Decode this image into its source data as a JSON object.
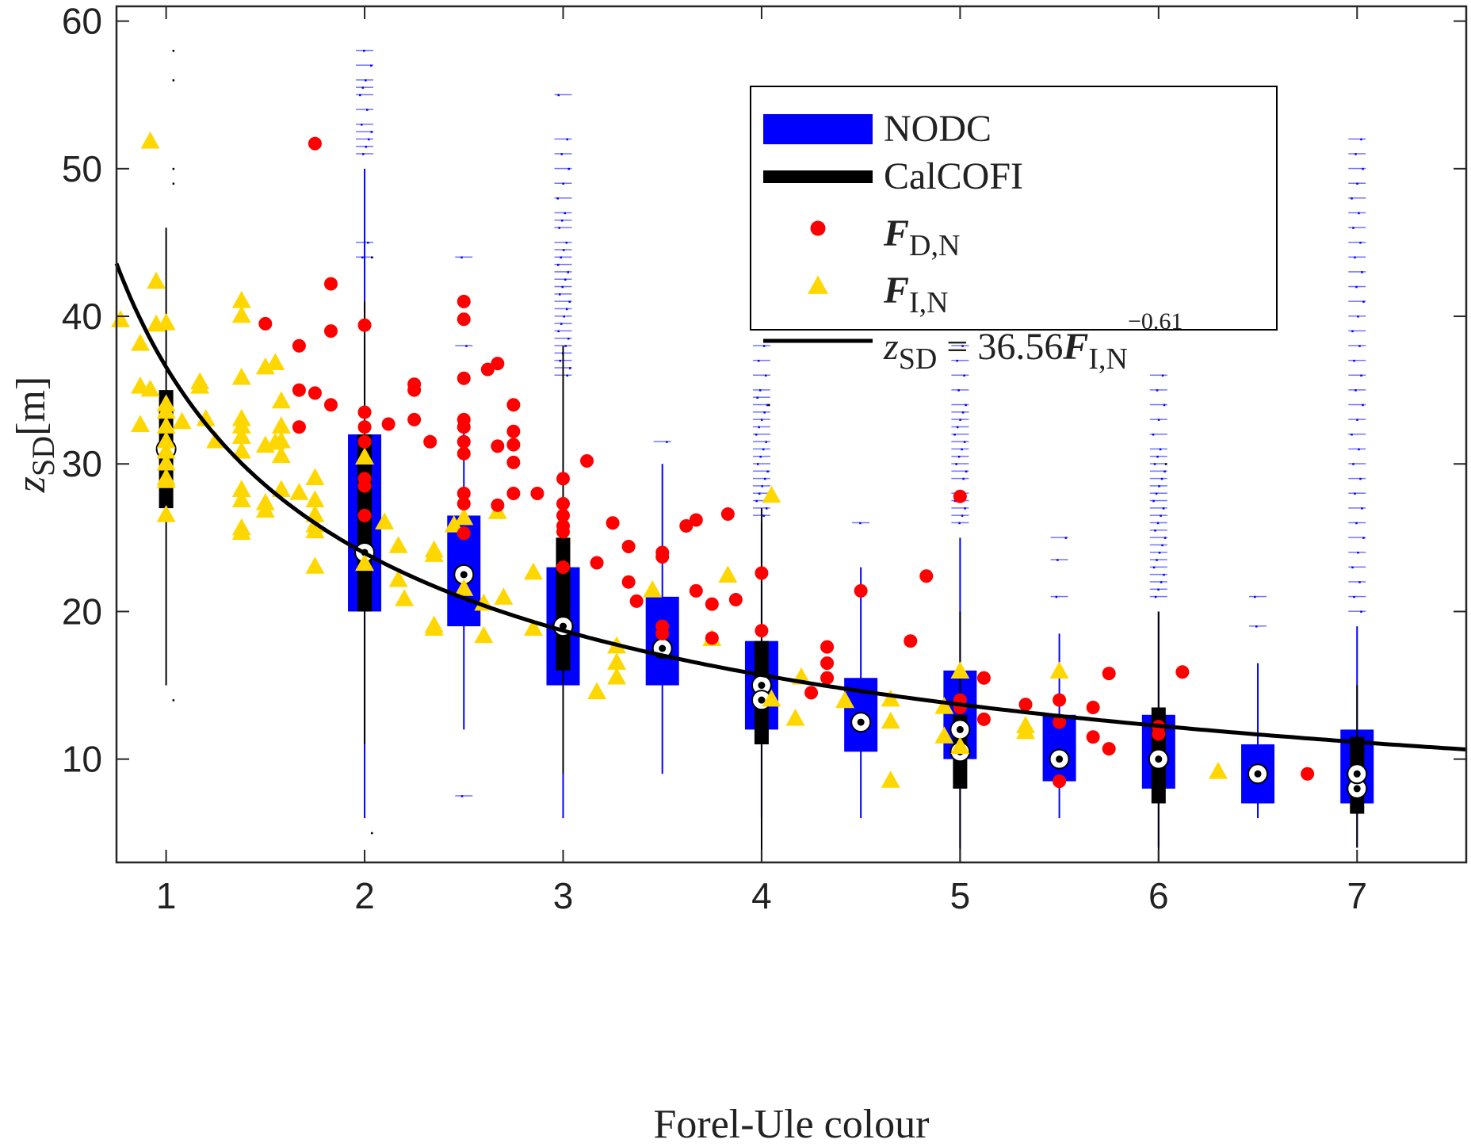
{
  "chart_data": {
    "type": "box",
    "title": "",
    "xlabel": "Forel-Ule colour",
    "ylabel": {
      "var": "z",
      "sub": "SD",
      "unit": "[m]"
    },
    "xlim": [
      0.75,
      7.55
    ],
    "ylim": [
      3,
      61
    ],
    "xticks": [
      1,
      2,
      3,
      4,
      5,
      6,
      7
    ],
    "yticks": [
      10,
      20,
      30,
      40,
      50,
      60
    ],
    "grid": false,
    "legend_position": "top-right",
    "colors": {
      "nodc": "#0000ff",
      "calcofi": "#000000",
      "fdn": "#ff0000",
      "fin": "#ffd700",
      "fit": "#000000"
    },
    "legend": [
      {
        "key": "nodc",
        "text": "NODC"
      },
      {
        "key": "calcofi",
        "text": "CalCOFI"
      },
      {
        "key": "fdn",
        "bold": "F",
        "sub": "D,N"
      },
      {
        "key": "fin",
        "bold": "F",
        "sub": "I,N"
      },
      {
        "key": "fit",
        "pre": "z",
        "presub": "SD",
        "eq": " = 36.56",
        "bold": "F",
        "sub": "I,N",
        "sup": "−0.61"
      }
    ],
    "fit": {
      "a": 36.56,
      "b": -0.61
    },
    "nodc_boxes": [
      {
        "x": 2,
        "q1": 20,
        "q3": 32,
        "median": 24,
        "wlow": 6,
        "whigh": 50,
        "outliers": [
          51,
          51.5,
          52,
          52.5,
          53,
          54,
          55,
          55.5,
          56,
          57,
          58,
          44,
          45
        ]
      },
      {
        "x": 2.5,
        "q1": 19,
        "q3": 26.5,
        "median": 22.5,
        "wlow": 12,
        "whigh": 33,
        "outliers": [
          7.5,
          38,
          44
        ]
      },
      {
        "x": 3,
        "q1": 15,
        "q3": 23,
        "median": 19,
        "wlow": 6,
        "whigh": 35,
        "outliers": [
          36,
          36.5,
          37,
          37.5,
          38,
          38.5,
          39,
          39.5,
          40,
          40.5,
          41,
          41.5,
          42,
          42.5,
          43,
          43.5,
          44,
          44.5,
          45,
          46,
          46.5,
          47,
          48,
          49,
          50,
          51,
          52,
          55
        ]
      },
      {
        "x": 3.5,
        "q1": 15,
        "q3": 21,
        "median": 17.5,
        "wlow": 9,
        "whigh": 30,
        "outliers": [
          31.5
        ]
      },
      {
        "x": 4,
        "q1": 12,
        "q3": 18,
        "median": 15,
        "wlow": 6,
        "whigh": 26,
        "outliers": [
          26.5,
          27,
          27.5,
          28,
          28.5,
          29,
          29.5,
          30,
          30.5,
          31,
          31.5,
          32,
          32.5,
          33,
          33.5,
          34,
          34.5,
          35,
          36,
          37,
          38
        ]
      },
      {
        "x": 4.5,
        "q1": 10.5,
        "q3": 15.5,
        "median": 12.5,
        "wlow": 6,
        "whigh": 23,
        "outliers": [
          26
        ]
      },
      {
        "x": 5,
        "q1": 10,
        "q3": 16,
        "median": 12,
        "wlow": 4,
        "whigh": 25,
        "outliers": [
          26,
          26.5,
          27,
          27.5,
          28,
          29,
          29.5,
          30,
          30.5,
          31,
          31.5,
          32,
          32.5,
          33,
          33.5,
          34,
          35,
          36,
          37,
          38
        ]
      },
      {
        "x": 5.5,
        "q1": 8.5,
        "q3": 13,
        "median": 10,
        "wlow": 6,
        "whigh": 18.5,
        "outliers": [
          21,
          23.5,
          25
        ]
      },
      {
        "x": 6,
        "q1": 8,
        "q3": 13,
        "median": 10,
        "wlow": 4,
        "whigh": 20,
        "outliers": [
          21,
          21.5,
          22,
          22.5,
          23,
          23.5,
          24,
          24.5,
          25,
          25.5,
          26,
          26.5,
          27,
          27.5,
          28,
          28.5,
          29,
          29.5,
          30,
          30.5,
          31,
          32,
          33,
          34,
          35,
          36
        ]
      },
      {
        "x": 6.5,
        "q1": 7,
        "q3": 11,
        "median": 9,
        "wlow": 6,
        "whigh": 16.5,
        "outliers": [
          19,
          21
        ]
      },
      {
        "x": 7,
        "q1": 7,
        "q3": 12,
        "median": 8,
        "wlow": 4,
        "whigh": 19,
        "outliers": [
          20,
          21,
          22,
          23,
          24,
          25,
          26,
          27,
          28,
          29,
          30,
          31,
          32,
          33,
          34,
          35,
          36,
          37,
          38,
          39,
          40,
          41,
          42,
          43,
          44,
          45,
          46,
          47,
          48,
          49,
          50,
          51,
          52
        ]
      }
    ],
    "calcofi_boxes": [
      {
        "x": 1,
        "q1": 27,
        "q3": 35,
        "median": 31,
        "wlow": 15,
        "whigh": 46,
        "outliers": [
          14,
          49,
          50,
          56,
          58
        ]
      },
      {
        "x": 2,
        "q1": 20,
        "q3": 32,
        "median": 24,
        "wlow": 11,
        "whigh": 41,
        "outliers": [
          5,
          44
        ]
      },
      {
        "x": 3,
        "q1": 16,
        "q3": 25,
        "median": 19,
        "wlow": 9,
        "whigh": 38,
        "outliers": []
      },
      {
        "x": 4,
        "q1": 11,
        "q3": 18,
        "median": 14,
        "wlow": 3,
        "whigh": 27,
        "outliers": [
          34
        ]
      },
      {
        "x": 5,
        "q1": 8,
        "q3": 13,
        "median": 10.5,
        "wlow": 3,
        "whigh": 20,
        "outliers": []
      },
      {
        "x": 6,
        "q1": 7,
        "q3": 13.5,
        "median": 10,
        "wlow": 3,
        "whigh": 20,
        "outliers": [
          30
        ]
      },
      {
        "x": 7,
        "q1": 6.3,
        "q3": 11.5,
        "median": 9,
        "wlow": 4,
        "whigh": 15,
        "outliers": []
      }
    ],
    "fdn_points": [
      [
        1.5,
        39.5
      ],
      [
        1.67,
        38
      ],
      [
        1.67,
        35
      ],
      [
        1.67,
        32.5
      ],
      [
        1.75,
        51.7
      ],
      [
        1.75,
        34.8
      ],
      [
        1.83,
        42.2
      ],
      [
        1.83,
        39
      ],
      [
        1.83,
        34
      ],
      [
        2,
        39.4
      ],
      [
        2,
        33.5
      ],
      [
        2,
        32.5
      ],
      [
        2,
        31.5
      ],
      [
        2,
        29
      ],
      [
        2,
        28.5
      ],
      [
        2,
        26.5
      ],
      [
        2.12,
        32.7
      ],
      [
        2.25,
        35.4
      ],
      [
        2.25,
        35
      ],
      [
        2.25,
        33
      ],
      [
        2.33,
        31.5
      ],
      [
        2.5,
        41
      ],
      [
        2.5,
        39.8
      ],
      [
        2.5,
        35.8
      ],
      [
        2.5,
        33
      ],
      [
        2.5,
        32.5
      ],
      [
        2.5,
        31.5
      ],
      [
        2.5,
        30.7
      ],
      [
        2.5,
        28
      ],
      [
        2.5,
        27.3
      ],
      [
        2.5,
        25.3
      ],
      [
        2.62,
        36.4
      ],
      [
        2.67,
        36.8
      ],
      [
        2.67,
        31.2
      ],
      [
        2.67,
        27.2
      ],
      [
        2.75,
        34
      ],
      [
        2.75,
        32.2
      ],
      [
        2.75,
        31.3
      ],
      [
        2.75,
        30.1
      ],
      [
        2.75,
        28
      ],
      [
        2.87,
        28
      ],
      [
        3,
        29
      ],
      [
        3,
        27.3
      ],
      [
        3,
        26.5
      ],
      [
        3,
        25.8
      ],
      [
        3,
        25.4
      ],
      [
        3,
        23
      ],
      [
        3.12,
        30.2
      ],
      [
        3.17,
        23.3
      ],
      [
        3.25,
        26
      ],
      [
        3.33,
        24.4
      ],
      [
        3.33,
        22
      ],
      [
        3.37,
        20.7
      ],
      [
        3.5,
        24
      ],
      [
        3.5,
        23.7
      ],
      [
        3.5,
        19
      ],
      [
        3.5,
        18.5
      ],
      [
        3.62,
        25.8
      ],
      [
        3.67,
        26.2
      ],
      [
        3.67,
        21.4
      ],
      [
        3.75,
        20.5
      ],
      [
        3.75,
        18.2
      ],
      [
        3.83,
        26.6
      ],
      [
        3.87,
        20.8
      ],
      [
        4,
        22.6
      ],
      [
        4,
        18.7
      ],
      [
        4.25,
        14.5
      ],
      [
        4.33,
        17.6
      ],
      [
        4.33,
        16.5
      ],
      [
        4.33,
        15.5
      ],
      [
        4.5,
        21.4
      ],
      [
        4.75,
        18
      ],
      [
        4.83,
        22.4
      ],
      [
        5,
        27.8
      ],
      [
        5,
        14
      ],
      [
        5,
        13.5
      ],
      [
        5.12,
        15.5
      ],
      [
        5.12,
        12.7
      ],
      [
        5.33,
        13.7
      ],
      [
        5.5,
        14
      ],
      [
        5.5,
        12.5
      ],
      [
        5.5,
        8.5
      ],
      [
        5.67,
        13.5
      ],
      [
        5.67,
        11.5
      ],
      [
        5.75,
        15.8
      ],
      [
        5.75,
        10.7
      ],
      [
        6,
        12.2
      ],
      [
        6,
        11.7
      ],
      [
        6.12,
        15.9
      ],
      [
        6.75,
        9
      ]
    ],
    "fin_points": [
      [
        0.77,
        39.7
      ],
      [
        0.87,
        38.1
      ],
      [
        0.87,
        35.2
      ],
      [
        0.87,
        32.6
      ],
      [
        0.92,
        51.8
      ],
      [
        0.92,
        35
      ],
      [
        0.95,
        42.3
      ],
      [
        0.95,
        39.4
      ],
      [
        1,
        39.5
      ],
      [
        1,
        34
      ],
      [
        1,
        33.5
      ],
      [
        1,
        32.5
      ],
      [
        1,
        31.5
      ],
      [
        1,
        30.8
      ],
      [
        1,
        30
      ],
      [
        1,
        29
      ],
      [
        1,
        28.8
      ],
      [
        1,
        26.5
      ],
      [
        1.08,
        32.8
      ],
      [
        1.17,
        35.5
      ],
      [
        1.17,
        35.2
      ],
      [
        1.2,
        33
      ],
      [
        1.25,
        31.5
      ],
      [
        1.38,
        41
      ],
      [
        1.38,
        40
      ],
      [
        1.38,
        35.8
      ],
      [
        1.38,
        33
      ],
      [
        1.38,
        32.5
      ],
      [
        1.38,
        31.8
      ],
      [
        1.38,
        30.8
      ],
      [
        1.38,
        28.2
      ],
      [
        1.38,
        27.5
      ],
      [
        1.38,
        25.6
      ],
      [
        1.38,
        25.3
      ],
      [
        1.5,
        36.5
      ],
      [
        1.55,
        36.8
      ],
      [
        1.5,
        31.2
      ],
      [
        1.55,
        31.4
      ],
      [
        1.5,
        27.3
      ],
      [
        1.5,
        26.8
      ],
      [
        1.58,
        34.2
      ],
      [
        1.58,
        32.5
      ],
      [
        1.58,
        31.5
      ],
      [
        1.58,
        30.5
      ],
      [
        1.58,
        28.2
      ],
      [
        1.67,
        28
      ],
      [
        1.75,
        29
      ],
      [
        1.75,
        27.5
      ],
      [
        1.75,
        26.5
      ],
      [
        1.75,
        25.8
      ],
      [
        1.75,
        25.4
      ],
      [
        1.75,
        23
      ],
      [
        2,
        30.4
      ],
      [
        2,
        23.2
      ],
      [
        2.1,
        26
      ],
      [
        2.17,
        24.4
      ],
      [
        2.17,
        22.1
      ],
      [
        2.2,
        20.8
      ],
      [
        2.35,
        24.1
      ],
      [
        2.35,
        23.8
      ],
      [
        2.35,
        19
      ],
      [
        2.35,
        18.8
      ],
      [
        2.45,
        25.8
      ],
      [
        2.5,
        26.3
      ],
      [
        2.5,
        21.5
      ],
      [
        2.6,
        20.5
      ],
      [
        2.6,
        18.3
      ],
      [
        2.67,
        26.7
      ],
      [
        2.7,
        20.9
      ],
      [
        2.85,
        22.6
      ],
      [
        2.85,
        18.8
      ],
      [
        3.17,
        14.5
      ],
      [
        3.27,
        17.6
      ],
      [
        3.27,
        16.5
      ],
      [
        3.27,
        15.5
      ],
      [
        3.45,
        21.4
      ],
      [
        3.75,
        18.1
      ],
      [
        3.83,
        22.4
      ],
      [
        4.05,
        27.8
      ],
      [
        4.05,
        14
      ],
      [
        4.17,
        12.7
      ],
      [
        4.2,
        15.5
      ],
      [
        4.42,
        13.9
      ],
      [
        4.65,
        14
      ],
      [
        4.65,
        12.5
      ],
      [
        4.65,
        8.5
      ],
      [
        4.92,
        13.5
      ],
      [
        4.92,
        11.5
      ],
      [
        5,
        15.9
      ],
      [
        5,
        10.8
      ],
      [
        5.33,
        12.2
      ],
      [
        5.33,
        11.8
      ],
      [
        5.5,
        15.9
      ],
      [
        6.3,
        9.1
      ]
    ]
  }
}
